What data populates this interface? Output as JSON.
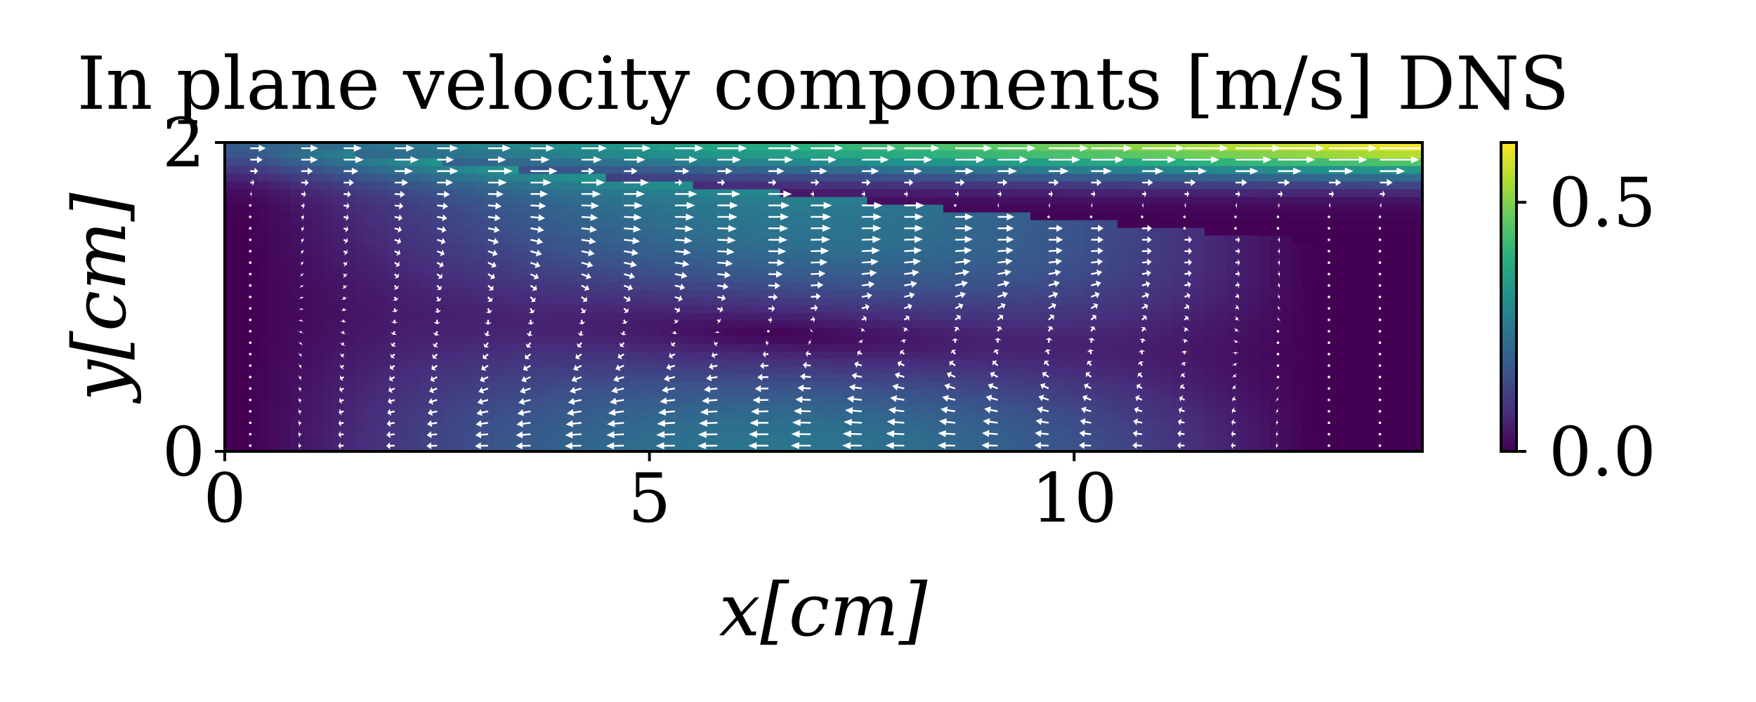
{
  "chart_data": {
    "type": "heatmap",
    "title": "In plane velocity components [m/s] DNS",
    "xlabel": "x[cm]",
    "ylabel": "y[cm]",
    "xlim": [
      0,
      14.1
    ],
    "ylim": [
      0,
      2
    ],
    "x_ticks": [
      {
        "value": 0,
        "label": "0"
      },
      {
        "value": 5,
        "label": "5"
      },
      {
        "value": 10,
        "label": "10"
      }
    ],
    "y_ticks": [
      {
        "value": 0,
        "label": "0"
      },
      {
        "value": 2,
        "label": "2"
      }
    ],
    "colorbar": {
      "colormap": "viridis",
      "range": [
        0,
        0.62
      ],
      "ticks": [
        {
          "value": 0,
          "label": "0.0"
        },
        {
          "value": 0.5,
          "label": "0.5"
        }
      ]
    },
    "overlay": {
      "type": "quiver",
      "color": "#ffffff",
      "columns_x": [
        0.3,
        0.9,
        1.4,
        2.0,
        2.5,
        3.1,
        3.6,
        4.2,
        4.7,
        5.3,
        5.8,
        6.4,
        6.9,
        7.5,
        8.0,
        8.6,
        9.1,
        9.7,
        10.2,
        10.8,
        11.3,
        11.9,
        12.4,
        13.0,
        13.6
      ],
      "rows": 27
    },
    "grid": false,
    "legend": "none"
  },
  "colors": {
    "background": "#ffffff",
    "axes": "#000000",
    "arrows": "#ffffff"
  }
}
